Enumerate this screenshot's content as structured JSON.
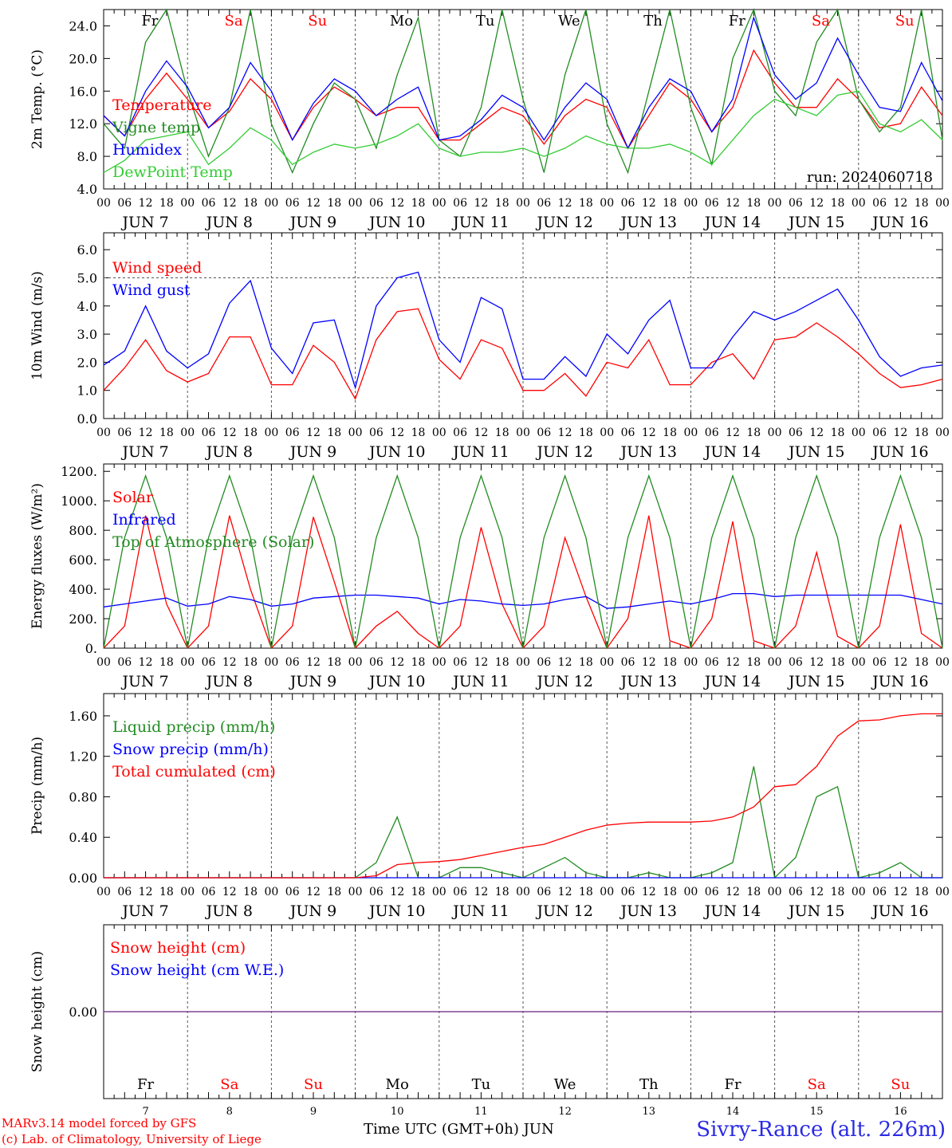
{
  "chart_data": {
    "type": "line",
    "days": [
      "7",
      "8",
      "9",
      "10",
      "11",
      "12",
      "13",
      "14",
      "15",
      "16"
    ],
    "weekdays": [
      "Fr",
      "Sa",
      "Su",
      "Mo",
      "Tu",
      "We",
      "Th",
      "Fr",
      "Sa",
      "Su"
    ],
    "weekend_flags": [
      false,
      true,
      true,
      false,
      false,
      false,
      false,
      false,
      true,
      true
    ],
    "hour_ticks": [
      "00",
      "06",
      "12",
      "18"
    ],
    "month": "JUN",
    "panels": [
      {
        "ylabel": "2m Temp. (°C)",
        "ylim": [
          4,
          26
        ],
        "yticks": [
          "4.0",
          "8.0",
          "12.0",
          "16.0",
          "20.0",
          "24.0"
        ],
        "ytick_values": [
          4,
          8,
          12,
          16,
          20,
          24
        ],
        "annotation": "run: 2024060718",
        "series": [
          {
            "name": "Temperature",
            "color": "#ff0000",
            "values": [
              13,
              10.5,
              15,
              18.2,
              15,
              11.5,
              13.5,
              17.5,
              15,
              10,
              14,
              16.5,
              15,
              13,
              14,
              14,
              10,
              10,
              12,
              14,
              13,
              9.5,
              13,
              15,
              14,
              9,
              13,
              17,
              15,
              11,
              14,
              21,
              17,
              14,
              14,
              17.5,
              15,
              11.5,
              12,
              16.5,
              13
            ]
          },
          {
            "name": "Vigne temp",
            "color": "#228b22",
            "values": [
              12,
              9,
              22,
              28,
              16,
              8,
              14,
              30,
              12,
              6,
              12,
              17,
              15,
              9,
              18,
              25,
              10,
              8,
              14,
              28,
              15,
              6,
              18,
              26,
              12,
              6,
              16,
              30,
              14,
              7,
              20,
              30,
              16,
              13,
              22,
              30,
              15,
              11,
              14,
              28,
              10
            ]
          },
          {
            "name": "Humidex",
            "color": "#0000ff",
            "values": [
              13,
              10.5,
              16,
              19.7,
              16.5,
              11.5,
              14,
              19.5,
              16,
              10,
              14.5,
              17.5,
              16,
              13,
              15,
              16.5,
              10,
              10.5,
              12.5,
              15.5,
              14,
              10,
              14,
              17,
              15,
              9,
              14,
              17.5,
              16,
              11,
              15,
              25,
              18,
              15,
              17,
              22.5,
              18,
              14,
              13.5,
              19.5,
              14.8
            ]
          },
          {
            "name": "DewPoint Temp",
            "color": "#33cc33",
            "values": [
              6,
              7.5,
              10,
              10.5,
              11,
              7,
              9,
              11.5,
              10,
              7,
              8.5,
              9.5,
              9,
              9.5,
              10.5,
              12,
              9,
              8,
              8.5,
              8.5,
              9,
              8,
              9,
              10.5,
              9.5,
              9,
              9,
              9.5,
              8.5,
              7,
              10,
              13,
              15,
              14,
              13,
              15.5,
              16,
              12,
              11,
              12.5,
              10
            ]
          }
        ]
      },
      {
        "ylabel": "10m Wind (m/s)",
        "ylim": [
          0,
          6.6
        ],
        "yticks": [
          "0.0",
          "1.0",
          "2.0",
          "3.0",
          "4.0",
          "5.0",
          "6.0"
        ],
        "ytick_values": [
          0,
          1,
          2,
          3,
          4,
          5,
          6
        ],
        "reference_line": 5.0,
        "series": [
          {
            "name": "Wind speed",
            "color": "#ff0000",
            "values": [
              1.0,
              1.8,
              2.8,
              1.7,
              1.3,
              1.6,
              2.9,
              2.9,
              1.2,
              1.2,
              2.6,
              2.0,
              0.7,
              2.8,
              3.8,
              3.9,
              2.1,
              1.4,
              2.8,
              2.5,
              1.0,
              1.0,
              1.6,
              0.8,
              2.0,
              1.8,
              2.8,
              1.2,
              1.2,
              2.0,
              2.3,
              1.4,
              2.8,
              2.9,
              3.4,
              2.9,
              2.3,
              1.6,
              1.1,
              1.2,
              1.4
            ]
          },
          {
            "name": "Wind gust",
            "color": "#0000ff",
            "values": [
              1.9,
              2.4,
              4.0,
              2.4,
              1.8,
              2.3,
              4.1,
              4.9,
              2.5,
              1.6,
              3.4,
              3.5,
              1.1,
              4.0,
              5.0,
              5.2,
              2.8,
              2.0,
              4.3,
              3.9,
              1.4,
              1.4,
              2.2,
              1.5,
              3.0,
              2.3,
              3.5,
              4.2,
              1.8,
              1.8,
              2.9,
              3.8,
              3.5,
              3.8,
              4.2,
              4.6,
              3.5,
              2.2,
              1.5,
              1.8,
              1.9
            ]
          }
        ]
      },
      {
        "ylabel": "Energy fluxes (W/m²)",
        "ylim": [
          0,
          1250
        ],
        "yticks": [
          "0.",
          "200.",
          "400.",
          "600.",
          "800.",
          "1000.",
          "1200."
        ],
        "ytick_values": [
          0,
          200,
          400,
          600,
          800,
          1000,
          1200
        ],
        "series": [
          {
            "name": "Solar",
            "color": "#ff0000",
            "values": [
              0,
              150,
              900,
              300,
              0,
              150,
              900,
              400,
              0,
              150,
              890,
              450,
              0,
              150,
              250,
              100,
              0,
              150,
              820,
              300,
              0,
              150,
              750,
              350,
              0,
              200,
              900,
              50,
              0,
              200,
              860,
              50,
              0,
              150,
              650,
              80,
              0,
              150,
              840,
              100,
              0
            ]
          },
          {
            "name": "Infrared",
            "color": "#0000ff",
            "values": [
              280,
              300,
              320,
              340,
              285,
              300,
              350,
              330,
              285,
              300,
              340,
              350,
              360,
              360,
              350,
              340,
              300,
              330,
              320,
              300,
              290,
              300,
              330,
              350,
              270,
              280,
              300,
              320,
              300,
              330,
              370,
              370,
              350,
              360,
              360,
              360,
              360,
              360,
              360,
              330,
              300
            ]
          },
          {
            "name": "Top of Atmosphere (Solar)",
            "color": "#228b22",
            "values": [
              0,
              750,
              1170,
              750,
              0,
              750,
              1170,
              750,
              0,
              750,
              1170,
              750,
              0,
              750,
              1170,
              750,
              0,
              750,
              1170,
              750,
              0,
              750,
              1170,
              750,
              0,
              750,
              1170,
              750,
              0,
              750,
              1170,
              750,
              0,
              750,
              1170,
              750,
              0,
              750,
              1170,
              750,
              0
            ]
          }
        ]
      },
      {
        "ylabel": "Precip (mm/h)",
        "ylim": [
          0,
          1.82
        ],
        "yticks": [
          "0.00",
          "0.40",
          "0.80",
          "1.20",
          "1.60"
        ],
        "ytick_values": [
          0,
          0.4,
          0.8,
          1.2,
          1.6
        ],
        "series": [
          {
            "name": "Liquid precip (mm/h)",
            "color": "#228b22",
            "values": [
              0,
              0,
              0,
              0,
              0,
              0,
              0,
              0,
              0,
              0,
              0,
              0,
              0,
              0.15,
              0.6,
              0,
              0,
              0.1,
              0.1,
              0.05,
              0,
              0.1,
              0.2,
              0.05,
              0,
              0,
              0.05,
              0,
              0,
              0.05,
              0.15,
              1.1,
              0,
              0.2,
              0.8,
              0.9,
              0,
              0.05,
              0.15,
              0,
              0
            ]
          },
          {
            "name": "Snow precip (mm/h)",
            "color": "#0000ff",
            "values": [
              0,
              0,
              0,
              0,
              0,
              0,
              0,
              0,
              0,
              0,
              0,
              0,
              0,
              0,
              0,
              0,
              0,
              0,
              0,
              0,
              0,
              0,
              0,
              0,
              0,
              0,
              0,
              0,
              0,
              0,
              0,
              0,
              0,
              0,
              0,
              0,
              0,
              0,
              0,
              0,
              0
            ]
          },
          {
            "name": "Total cumulated (cm)",
            "color": "#ff0000",
            "values": [
              0,
              0,
              0,
              0,
              0,
              0,
              0,
              0,
              0,
              0,
              0,
              0,
              0,
              0.02,
              0.13,
              0.15,
              0.16,
              0.18,
              0.22,
              0.26,
              0.3,
              0.33,
              0.4,
              0.47,
              0.52,
              0.54,
              0.55,
              0.55,
              0.55,
              0.56,
              0.6,
              0.7,
              0.9,
              0.92,
              1.1,
              1.4,
              1.55,
              1.56,
              1.6,
              1.62,
              1.62
            ]
          }
        ]
      },
      {
        "ylabel": "Snow height (cm)",
        "ylim": [
          -1,
          1
        ],
        "yticks": [
          "0.00"
        ],
        "ytick_values": [
          0
        ],
        "series": [
          {
            "name": "Snow height (cm)",
            "color": "#ff0000",
            "values": [
              0,
              0,
              0,
              0,
              0,
              0,
              0,
              0,
              0,
              0,
              0,
              0,
              0,
              0,
              0,
              0,
              0,
              0,
              0,
              0,
              0,
              0,
              0,
              0,
              0,
              0,
              0,
              0,
              0,
              0,
              0,
              0,
              0,
              0,
              0,
              0,
              0,
              0,
              0,
              0,
              0
            ]
          },
          {
            "name": "Snow height (cm W.E.)",
            "color": "#0000ff",
            "values": [
              0,
              0,
              0,
              0,
              0,
              0,
              0,
              0,
              0,
              0,
              0,
              0,
              0,
              0,
              0,
              0,
              0,
              0,
              0,
              0,
              0,
              0,
              0,
              0,
              0,
              0,
              0,
              0,
              0,
              0,
              0,
              0,
              0,
              0,
              0,
              0,
              0,
              0,
              0,
              0,
              0
            ]
          }
        ]
      }
    ]
  },
  "footer": {
    "xlabel": "Time UTC (GMT+0h) JUN",
    "credit_line1": "MARv3.14 model forced by GFS",
    "credit_line2": "(c) Lab. of Climatology, University of Liege",
    "location": "Sivry-Rance (alt. 226m)"
  },
  "colors": {
    "weekday_text": "#000000",
    "weekend_text": "#ff0000",
    "location_text": "#2a2ae6",
    "snow_line": "#7a3f8f"
  }
}
